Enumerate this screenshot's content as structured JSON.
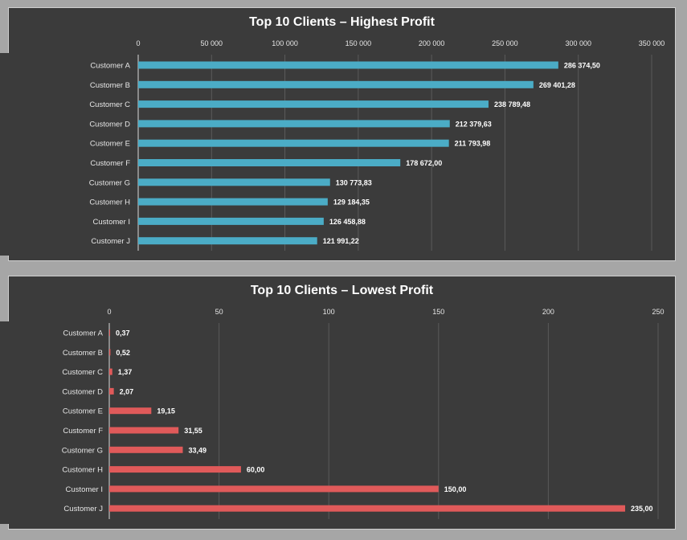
{
  "chart_data": [
    {
      "type": "bar",
      "orientation": "horizontal",
      "title": "Top 10 Clients – Highest Profit",
      "categories": [
        "Customer A",
        "Customer B",
        "Customer C",
        "Customer D",
        "Customer E",
        "Customer F",
        "Customer G",
        "Customer H",
        "Customer I",
        "Customer J"
      ],
      "values": [
        286374.5,
        269401.28,
        238789.48,
        212379.63,
        211793.98,
        178672.0,
        130773.83,
        129184.35,
        126458.88,
        121991.22
      ],
      "value_labels": [
        "286 374,50",
        "269 401,28",
        "238 789,48",
        "212 379,63",
        "211 793,98",
        "178 672,00",
        "130 773,83",
        "129 184,35",
        "126 458,88",
        "121 991,22"
      ],
      "xlim": [
        0,
        350000
      ],
      "ticks": [
        0,
        50000,
        100000,
        150000,
        200000,
        250000,
        300000,
        350000
      ],
      "tick_labels": [
        "0",
        "50 000",
        "100 000",
        "150 000",
        "200 000",
        "250 000",
        "300 000",
        "350 000"
      ],
      "axis_position": "top",
      "grid": true,
      "bar_color": "#4bacc6"
    },
    {
      "type": "bar",
      "orientation": "horizontal",
      "title": "Top 10 Clients – Lowest Profit",
      "categories": [
        "Customer A",
        "Customer B",
        "Customer C",
        "Customer D",
        "Customer E",
        "Customer F",
        "Customer G",
        "Customer H",
        "Customer I",
        "Customer J"
      ],
      "values": [
        0.37,
        0.52,
        1.37,
        2.07,
        19.15,
        31.55,
        33.49,
        60.0,
        150.0,
        235.0
      ],
      "value_labels": [
        "0,37",
        "0,52",
        "1,37",
        "2,07",
        "19,15",
        "31,55",
        "33,49",
        "60,00",
        "150,00",
        "235,00"
      ],
      "xlim": [
        0,
        250
      ],
      "ticks": [
        0,
        50,
        100,
        150,
        200,
        250
      ],
      "tick_labels": [
        "0",
        "50",
        "100",
        "150",
        "200",
        "250"
      ],
      "axis_position": "top",
      "grid": true,
      "bar_color": "#e05a5a"
    }
  ]
}
